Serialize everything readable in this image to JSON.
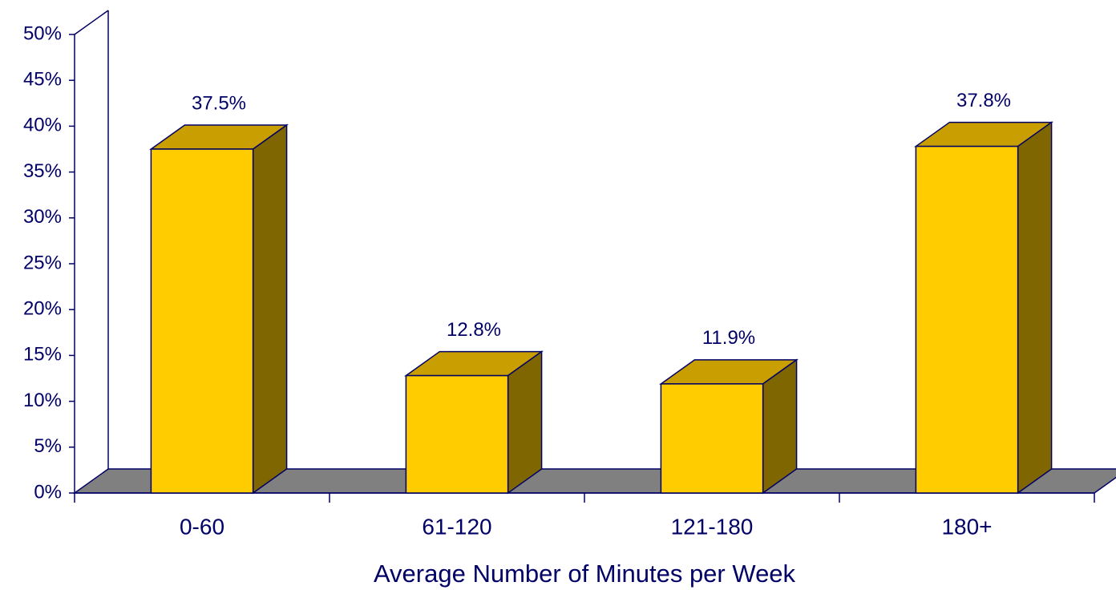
{
  "chart_data": {
    "type": "bar3d",
    "categories": [
      "0-60",
      "61-120",
      "121-180",
      "180+"
    ],
    "values": [
      37.5,
      12.8,
      11.9,
      37.8
    ],
    "value_labels": [
      "37.5%",
      "12.8%",
      "11.9%",
      "37.8%"
    ],
    "xlabel": "Average Number of Minutes per Week",
    "ylim": [
      0,
      50
    ],
    "yticks": [
      {
        "value": 0,
        "label": "0%"
      },
      {
        "value": 5,
        "label": "5%"
      },
      {
        "value": 10,
        "label": "10%"
      },
      {
        "value": 15,
        "label": "15%"
      },
      {
        "value": 20,
        "label": "20%"
      },
      {
        "value": 25,
        "label": "25%"
      },
      {
        "value": 30,
        "label": "30%"
      },
      {
        "value": 35,
        "label": "35%"
      },
      {
        "value": 40,
        "label": "40%"
      },
      {
        "value": 45,
        "label": "45%"
      },
      {
        "value": 50,
        "label": "50%"
      }
    ],
    "color": "#ffcc00",
    "floor_color": "#808080"
  }
}
